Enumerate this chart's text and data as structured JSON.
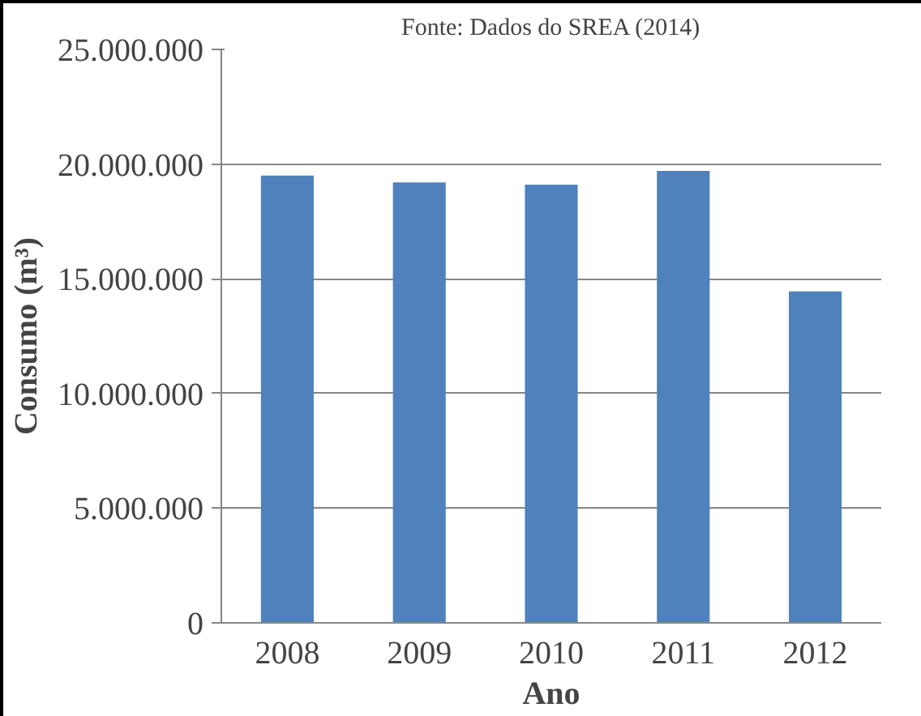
{
  "chart_data": {
    "type": "bar",
    "annotations": [
      "Fonte: Dados do SREA (2014)"
    ],
    "xlabel": "Ano",
    "ylabel": "Consumo (m³)",
    "categories": [
      "2008",
      "2009",
      "2010",
      "2011",
      "2012"
    ],
    "values": [
      19500000,
      19200000,
      19100000,
      19700000,
      14450000
    ],
    "color": "#4f81bd",
    "ylim": [
      0,
      25000000
    ],
    "yticks": [
      {
        "value": 0,
        "label": "0"
      },
      {
        "value": 5000000,
        "label": "5.000.000"
      },
      {
        "value": 10000000,
        "label": "10.000.000"
      },
      {
        "value": 15000000,
        "label": "15.000.000"
      },
      {
        "value": 20000000,
        "label": "20.000.000"
      },
      {
        "value": 25000000,
        "label": "25.000.000"
      }
    ],
    "grid": "y"
  }
}
